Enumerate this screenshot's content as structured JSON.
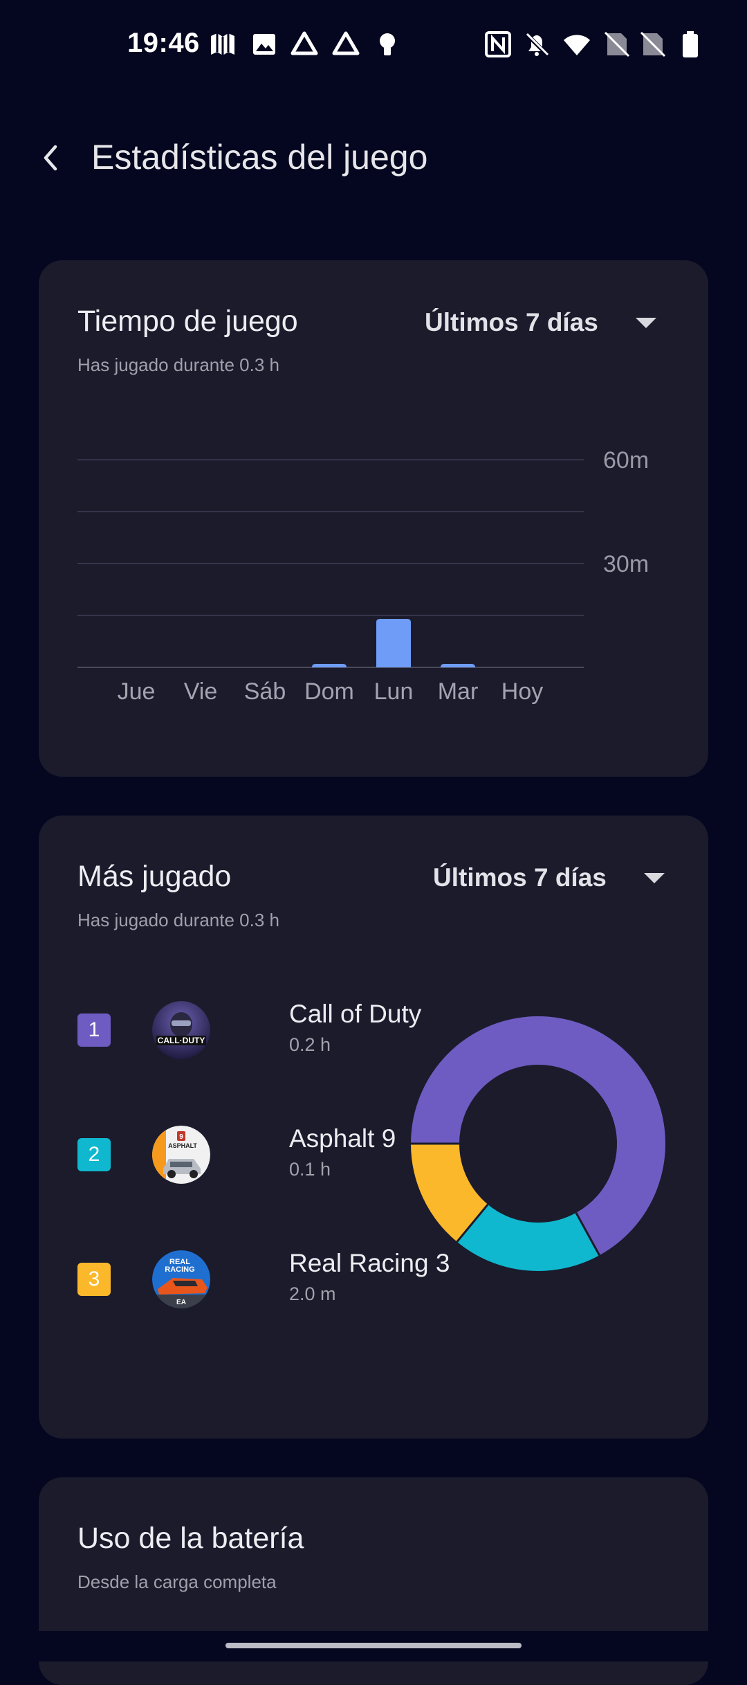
{
  "status_bar": {
    "time": "19:46",
    "left_icons": [
      "maps-icon",
      "gallery-icon",
      "drive-icon",
      "drive-icon",
      "bulb-icon"
    ],
    "right_icons": [
      "nfc-icon",
      "bell-off-icon",
      "wifi-icon",
      "no-sim-icon",
      "no-sim-icon",
      "battery-icon"
    ]
  },
  "header": {
    "back_icon": "back-arrow-icon",
    "title": "Estadísticas del juego"
  },
  "playtime_card": {
    "title": "Tiempo de juego",
    "subtitle": "Has jugado durante 0.3 h",
    "range_label": "Últimos 7 días"
  },
  "chart_data": {
    "type": "bar",
    "categories": [
      "Jue",
      "Vie",
      "Sáb",
      "Dom",
      "Lun",
      "Mar",
      "Hoy"
    ],
    "values": [
      0,
      0,
      0,
      1,
      14,
      1,
      0
    ],
    "ylim": [
      0,
      60
    ],
    "yticks": [
      30,
      60
    ],
    "ytick_labels": [
      "30m",
      "60m"
    ],
    "grid": true,
    "bar_color": "#6e9cf7",
    "title": "",
    "xlabel": "",
    "ylabel": ""
  },
  "most_played_card": {
    "title": "Más jugado",
    "subtitle": "Has jugado durante 0.3 h",
    "range_label": "Últimos 7 días",
    "games": [
      {
        "rank": "1",
        "name": "Call of Duty",
        "time": "0.2 h",
        "color": "#6e5cc2",
        "icon": "call-of-duty-icon",
        "share": 0.67
      },
      {
        "rank": "2",
        "name": "Asphalt 9",
        "time": "0.1 h",
        "color": "#0fb8cf",
        "icon": "asphalt-9-icon",
        "share": 0.19
      },
      {
        "rank": "3",
        "name": "Real Racing 3",
        "time": "2.0 m",
        "color": "#fbb82a",
        "icon": "real-racing-3-icon",
        "share": 0.14
      }
    ]
  },
  "battery_card": {
    "title": "Uso de la batería",
    "subtitle": "Desde la carga completa"
  }
}
